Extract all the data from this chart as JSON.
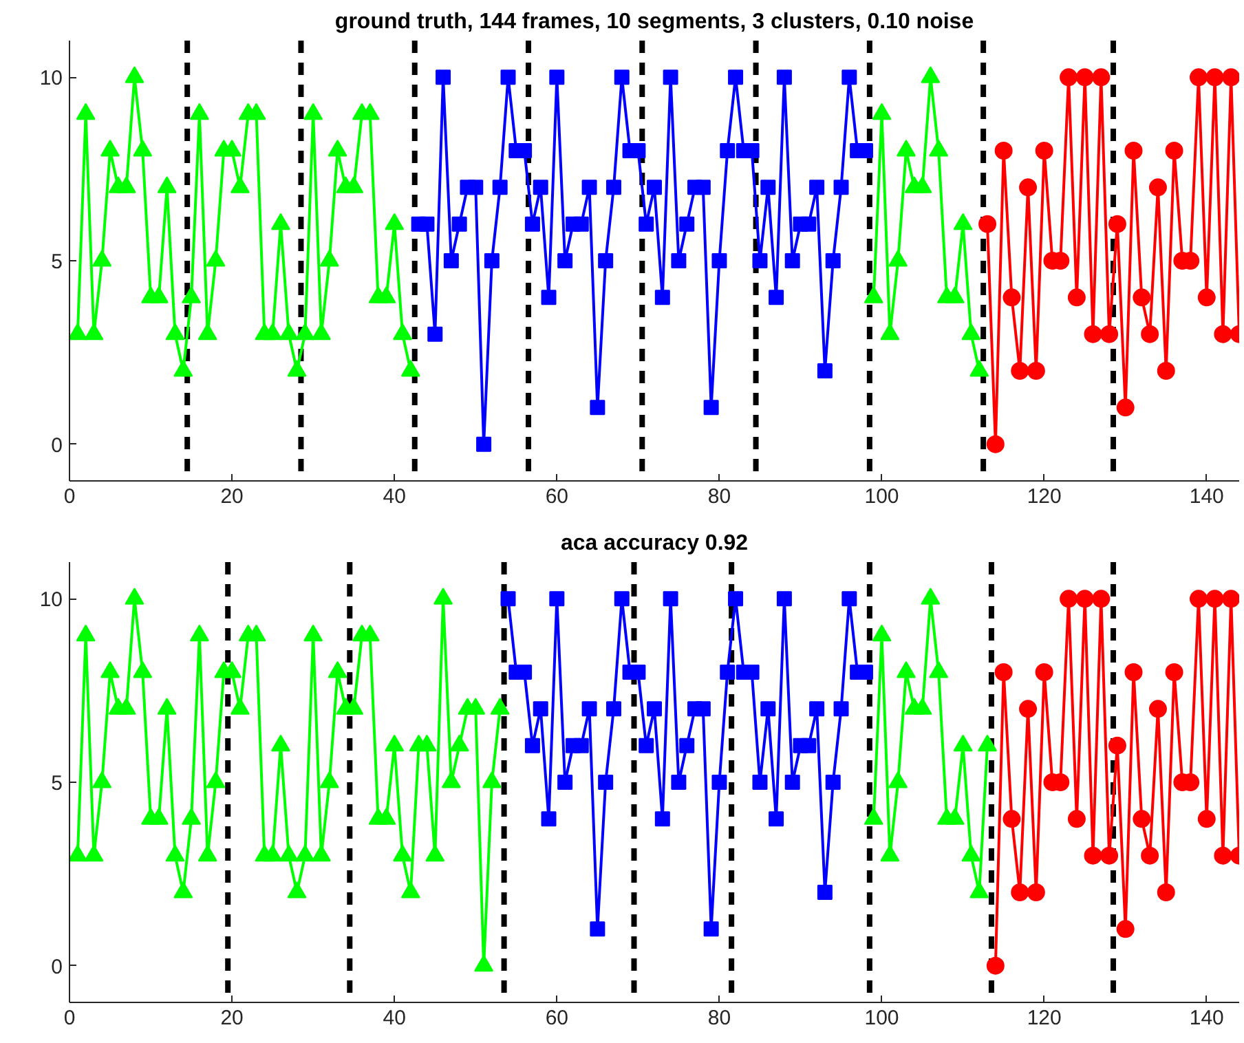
{
  "chart_data": [
    {
      "type": "line",
      "title": "ground truth, 144 frames, 10 segments, 3 clusters, 0.10 noise",
      "xlim": [
        0,
        144
      ],
      "ylim": [
        -1,
        11
      ],
      "xticks": [
        0,
        20,
        40,
        60,
        80,
        100,
        120,
        140
      ],
      "yticks": [
        0,
        5,
        10
      ],
      "grid": false,
      "line_style": "solid",
      "series": [
        {
          "color": "#00ff00",
          "marker": "triangle",
          "x": [
            1,
            2,
            3,
            4,
            5,
            6,
            7,
            8,
            9,
            10,
            11,
            12,
            13,
            14,
            15,
            16,
            17,
            18,
            19,
            20,
            21,
            22,
            23,
            24,
            25,
            26,
            27,
            28,
            29,
            30,
            31,
            32,
            33,
            34,
            35,
            36,
            37,
            38,
            39,
            40,
            41,
            42
          ],
          "values": [
            3,
            9,
            3,
            5,
            8,
            7,
            7,
            10,
            8,
            4,
            4,
            7,
            3,
            2,
            4,
            9,
            3,
            5,
            8,
            8,
            7,
            9,
            9,
            3,
            3,
            6,
            3,
            2,
            3,
            9,
            3,
            5,
            8,
            7,
            7,
            9,
            9,
            4,
            4,
            6,
            3,
            2
          ]
        },
        {
          "color": "#0000ff",
          "marker": "square",
          "x": [
            43,
            44,
            45,
            46,
            47,
            48,
            49,
            50,
            51,
            52,
            53,
            54,
            55,
            56,
            57,
            58,
            59,
            60,
            61,
            62,
            63,
            64,
            65,
            66,
            67,
            68,
            69,
            70,
            71,
            72,
            73,
            74,
            75,
            76,
            77,
            78,
            79,
            80,
            81,
            82,
            83,
            84,
            85,
            86,
            87,
            88,
            89,
            90,
            91,
            92,
            93,
            94,
            95,
            96,
            97,
            98
          ],
          "values": [
            6,
            6,
            3,
            10,
            5,
            6,
            7,
            7,
            0,
            5,
            7,
            10,
            8,
            8,
            6,
            7,
            4,
            10,
            5,
            6,
            6,
            7,
            1,
            5,
            7,
            10,
            8,
            8,
            6,
            7,
            4,
            10,
            5,
            6,
            7,
            7,
            1,
            5,
            8,
            10,
            8,
            8,
            5,
            7,
            4,
            10,
            5,
            6,
            6,
            7,
            2,
            5,
            7,
            10,
            8,
            8
          ]
        },
        {
          "color": "#00ff00",
          "marker": "triangle",
          "x": [
            99,
            100,
            101,
            102,
            103,
            104,
            105,
            106,
            107,
            108,
            109,
            110,
            111,
            112
          ],
          "values": [
            4,
            9,
            3,
            5,
            8,
            7,
            7,
            10,
            8,
            4,
            4,
            6,
            3,
            2
          ]
        },
        {
          "color": "#ff0000",
          "marker": "circle",
          "x": [
            113,
            114,
            115,
            116,
            117,
            118,
            119,
            120,
            121,
            122,
            123,
            124,
            125,
            126,
            127,
            128,
            129,
            130,
            131,
            132,
            133,
            134,
            135,
            136,
            137,
            138,
            139,
            140,
            141,
            142,
            143,
            144
          ],
          "values": [
            6,
            0,
            8,
            4,
            2,
            7,
            2,
            8,
            5,
            5,
            10,
            4,
            10,
            3,
            10,
            3,
            6,
            1,
            8,
            4,
            3,
            7,
            2,
            8,
            5,
            5,
            10,
            4,
            10,
            3,
            10,
            3
          ]
        }
      ],
      "ref_lines": [
        {
          "axis": "x",
          "value": 14.5,
          "color": "#000000",
          "line_style": "dashed"
        },
        {
          "axis": "x",
          "value": 28.5,
          "color": "#000000",
          "line_style": "dashed"
        },
        {
          "axis": "x",
          "value": 42.5,
          "color": "#000000",
          "line_style": "dashed"
        },
        {
          "axis": "x",
          "value": 56.5,
          "color": "#000000",
          "line_style": "dashed"
        },
        {
          "axis": "x",
          "value": 70.5,
          "color": "#000000",
          "line_style": "dashed"
        },
        {
          "axis": "x",
          "value": 84.5,
          "color": "#000000",
          "line_style": "dashed"
        },
        {
          "axis": "x",
          "value": 98.5,
          "color": "#000000",
          "line_style": "dashed"
        },
        {
          "axis": "x",
          "value": 112.5,
          "color": "#000000",
          "line_style": "dashed"
        },
        {
          "axis": "x",
          "value": 128.5,
          "color": "#000000",
          "line_style": "dashed"
        }
      ]
    },
    {
      "type": "line",
      "title": "aca accuracy 0.92",
      "xlim": [
        0,
        144
      ],
      "ylim": [
        -1,
        11
      ],
      "xticks": [
        0,
        20,
        40,
        60,
        80,
        100,
        120,
        140
      ],
      "yticks": [
        0,
        5,
        10
      ],
      "grid": false,
      "line_style": "solid",
      "series": [
        {
          "color": "#00ff00",
          "marker": "triangle",
          "x": [
            1,
            2,
            3,
            4,
            5,
            6,
            7,
            8,
            9,
            10,
            11,
            12,
            13,
            14,
            15,
            16,
            17,
            18,
            19,
            20,
            21,
            22,
            23,
            24,
            25,
            26,
            27,
            28,
            29,
            30,
            31,
            32,
            33,
            34,
            35,
            36,
            37,
            38,
            39,
            40,
            41,
            42,
            43,
            44,
            45,
            46,
            47,
            48,
            49,
            50,
            51,
            52,
            53
          ],
          "values": [
            3,
            9,
            3,
            5,
            8,
            7,
            7,
            10,
            8,
            4,
            4,
            7,
            3,
            2,
            4,
            9,
            3,
            5,
            8,
            8,
            7,
            9,
            9,
            3,
            3,
            6,
            3,
            2,
            3,
            9,
            3,
            5,
            8,
            7,
            7,
            9,
            9,
            4,
            4,
            6,
            3,
            2,
            6,
            6,
            3,
            10,
            5,
            6,
            7,
            7,
            0,
            5,
            7
          ]
        },
        {
          "color": "#0000ff",
          "marker": "square",
          "x": [
            54,
            55,
            56,
            57,
            58,
            59,
            60,
            61,
            62,
            63,
            64,
            65,
            66,
            67,
            68,
            69,
            70,
            71,
            72,
            73,
            74,
            75,
            76,
            77,
            78,
            79,
            80,
            81,
            82,
            83,
            84,
            85,
            86,
            87,
            88,
            89,
            90,
            91,
            92,
            93,
            94,
            95,
            96,
            97,
            98
          ],
          "values": [
            10,
            8,
            8,
            6,
            7,
            4,
            10,
            5,
            6,
            6,
            7,
            1,
            5,
            7,
            10,
            8,
            8,
            6,
            7,
            4,
            10,
            5,
            6,
            7,
            7,
            1,
            5,
            8,
            10,
            8,
            8,
            5,
            7,
            4,
            10,
            5,
            6,
            6,
            7,
            2,
            5,
            7,
            10,
            8,
            8
          ]
        },
        {
          "color": "#00ff00",
          "marker": "triangle",
          "x": [
            99,
            100,
            101,
            102,
            103,
            104,
            105,
            106,
            107,
            108,
            109,
            110,
            111,
            112,
            113
          ],
          "values": [
            4,
            9,
            3,
            5,
            8,
            7,
            7,
            10,
            8,
            4,
            4,
            6,
            3,
            2,
            6
          ]
        },
        {
          "color": "#ff0000",
          "marker": "circle",
          "x": [
            114,
            115,
            116,
            117,
            118,
            119,
            120,
            121,
            122,
            123,
            124,
            125,
            126,
            127,
            128,
            129,
            130,
            131,
            132,
            133,
            134,
            135,
            136,
            137,
            138,
            139,
            140,
            141,
            142,
            143,
            144
          ],
          "values": [
            0,
            8,
            4,
            2,
            7,
            2,
            8,
            5,
            5,
            10,
            4,
            10,
            3,
            10,
            3,
            6,
            1,
            8,
            4,
            3,
            7,
            2,
            8,
            5,
            5,
            10,
            4,
            10,
            3,
            10,
            3
          ]
        }
      ],
      "ref_lines": [
        {
          "axis": "x",
          "value": 19.5,
          "color": "#000000",
          "line_style": "dashed"
        },
        {
          "axis": "x",
          "value": 34.5,
          "color": "#000000",
          "line_style": "dashed"
        },
        {
          "axis": "x",
          "value": 53.5,
          "color": "#000000",
          "line_style": "dashed"
        },
        {
          "axis": "x",
          "value": 69.5,
          "color": "#000000",
          "line_style": "dashed"
        },
        {
          "axis": "x",
          "value": 81.5,
          "color": "#000000",
          "line_style": "dashed"
        },
        {
          "axis": "x",
          "value": 98.5,
          "color": "#000000",
          "line_style": "dashed"
        },
        {
          "axis": "x",
          "value": 113.5,
          "color": "#000000",
          "line_style": "dashed"
        },
        {
          "axis": "x",
          "value": 128.5,
          "color": "#000000",
          "line_style": "dashed"
        }
      ]
    }
  ]
}
